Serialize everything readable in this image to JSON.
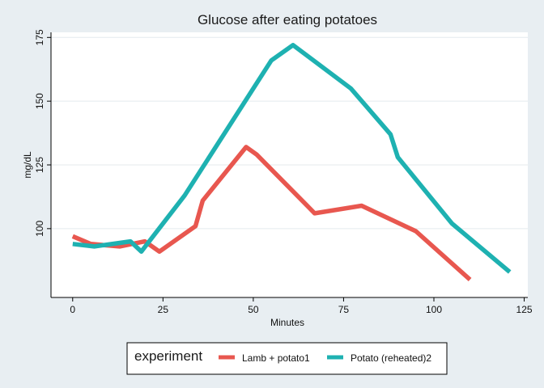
{
  "chart_data": {
    "type": "line",
    "title": "Glucose after eating potatoes",
    "xlabel": "Minutes",
    "ylabel": "mg/dL",
    "xlim": [
      -6,
      126
    ],
    "ylim": [
      73,
      177
    ],
    "xticks": [
      0,
      25,
      50,
      75,
      100,
      125
    ],
    "yticks": [
      100,
      125,
      150,
      175
    ],
    "grid": "horizontal",
    "legend_title": "experiment",
    "legend_position": "bottom",
    "series": [
      {
        "name": "Lamb + potato1",
        "color": "#e8574f",
        "points": [
          [
            0,
            97
          ],
          [
            5,
            94
          ],
          [
            13,
            93
          ],
          [
            20,
            95
          ],
          [
            24,
            91
          ],
          [
            34,
            101
          ],
          [
            36,
            111
          ],
          [
            48,
            132
          ],
          [
            51,
            129
          ],
          [
            67,
            106
          ],
          [
            80,
            109
          ],
          [
            95,
            99
          ],
          [
            110,
            80
          ]
        ]
      },
      {
        "name": "Potato (reheated)2",
        "color": "#1eb1b1",
        "points": [
          [
            0,
            94
          ],
          [
            6,
            93
          ],
          [
            16,
            95
          ],
          [
            19,
            91
          ],
          [
            31,
            113
          ],
          [
            55,
            166
          ],
          [
            61,
            172
          ],
          [
            77,
            155
          ],
          [
            88,
            137
          ],
          [
            90,
            128
          ],
          [
            105,
            102
          ],
          [
            121,
            83
          ]
        ]
      }
    ]
  }
}
